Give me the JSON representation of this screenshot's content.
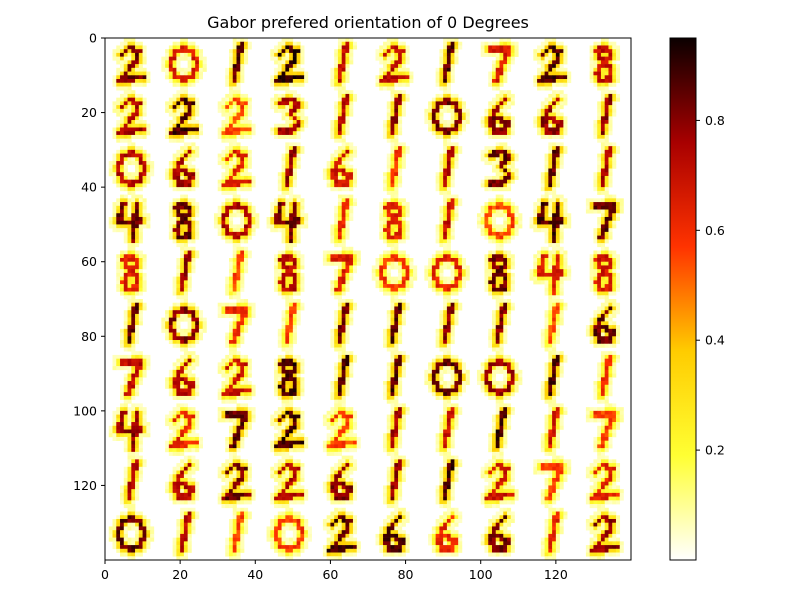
{
  "chart_data": {
    "type": "heatmap",
    "title": "Gabor prefered orientation of 0 Degrees",
    "xlabel": "",
    "ylabel": "",
    "x_ticks": [
      0,
      20,
      40,
      60,
      80,
      100,
      120
    ],
    "y_ticks": [
      0,
      20,
      40,
      60,
      80,
      100,
      120
    ],
    "xlim": [
      0,
      140
    ],
    "ylim": [
      140,
      0
    ],
    "grid": false,
    "colormap": "hot_r",
    "colorbar": {
      "range": [
        0.0,
        0.95
      ],
      "ticks": [
        0.2,
        0.4,
        0.6,
        0.8
      ]
    },
    "tile_grid": {
      "rows": 10,
      "cols": 10,
      "tile_size": 14,
      "digits": [
        [
          2,
          0,
          1,
          2,
          1,
          2,
          1,
          7,
          2,
          8
        ],
        [
          2,
          2,
          2,
          3,
          1,
          1,
          0,
          6,
          6,
          1
        ],
        [
          0,
          6,
          2,
          1,
          6,
          1,
          1,
          3,
          1,
          1
        ],
        [
          4,
          8,
          0,
          4,
          1,
          8,
          1,
          0,
          4,
          7
        ],
        [
          8,
          1,
          1,
          8,
          7,
          0,
          0,
          8,
          4,
          8
        ],
        [
          1,
          0,
          7,
          1,
          1,
          1,
          1,
          1,
          1,
          6
        ],
        [
          7,
          6,
          2,
          8,
          1,
          1,
          0,
          0,
          1,
          1
        ],
        [
          4,
          2,
          7,
          2,
          2,
          1,
          1,
          1,
          1,
          7
        ],
        [
          1,
          6,
          2,
          2,
          6,
          1,
          1,
          2,
          7,
          2
        ],
        [
          0,
          1,
          1,
          0,
          2,
          6,
          6,
          6,
          1,
          2
        ]
      ]
    }
  },
  "colors": {
    "high": "#000000",
    "mid_high": "#ff0000",
    "mid_low": "#ffff00",
    "low": "#ffffff"
  }
}
